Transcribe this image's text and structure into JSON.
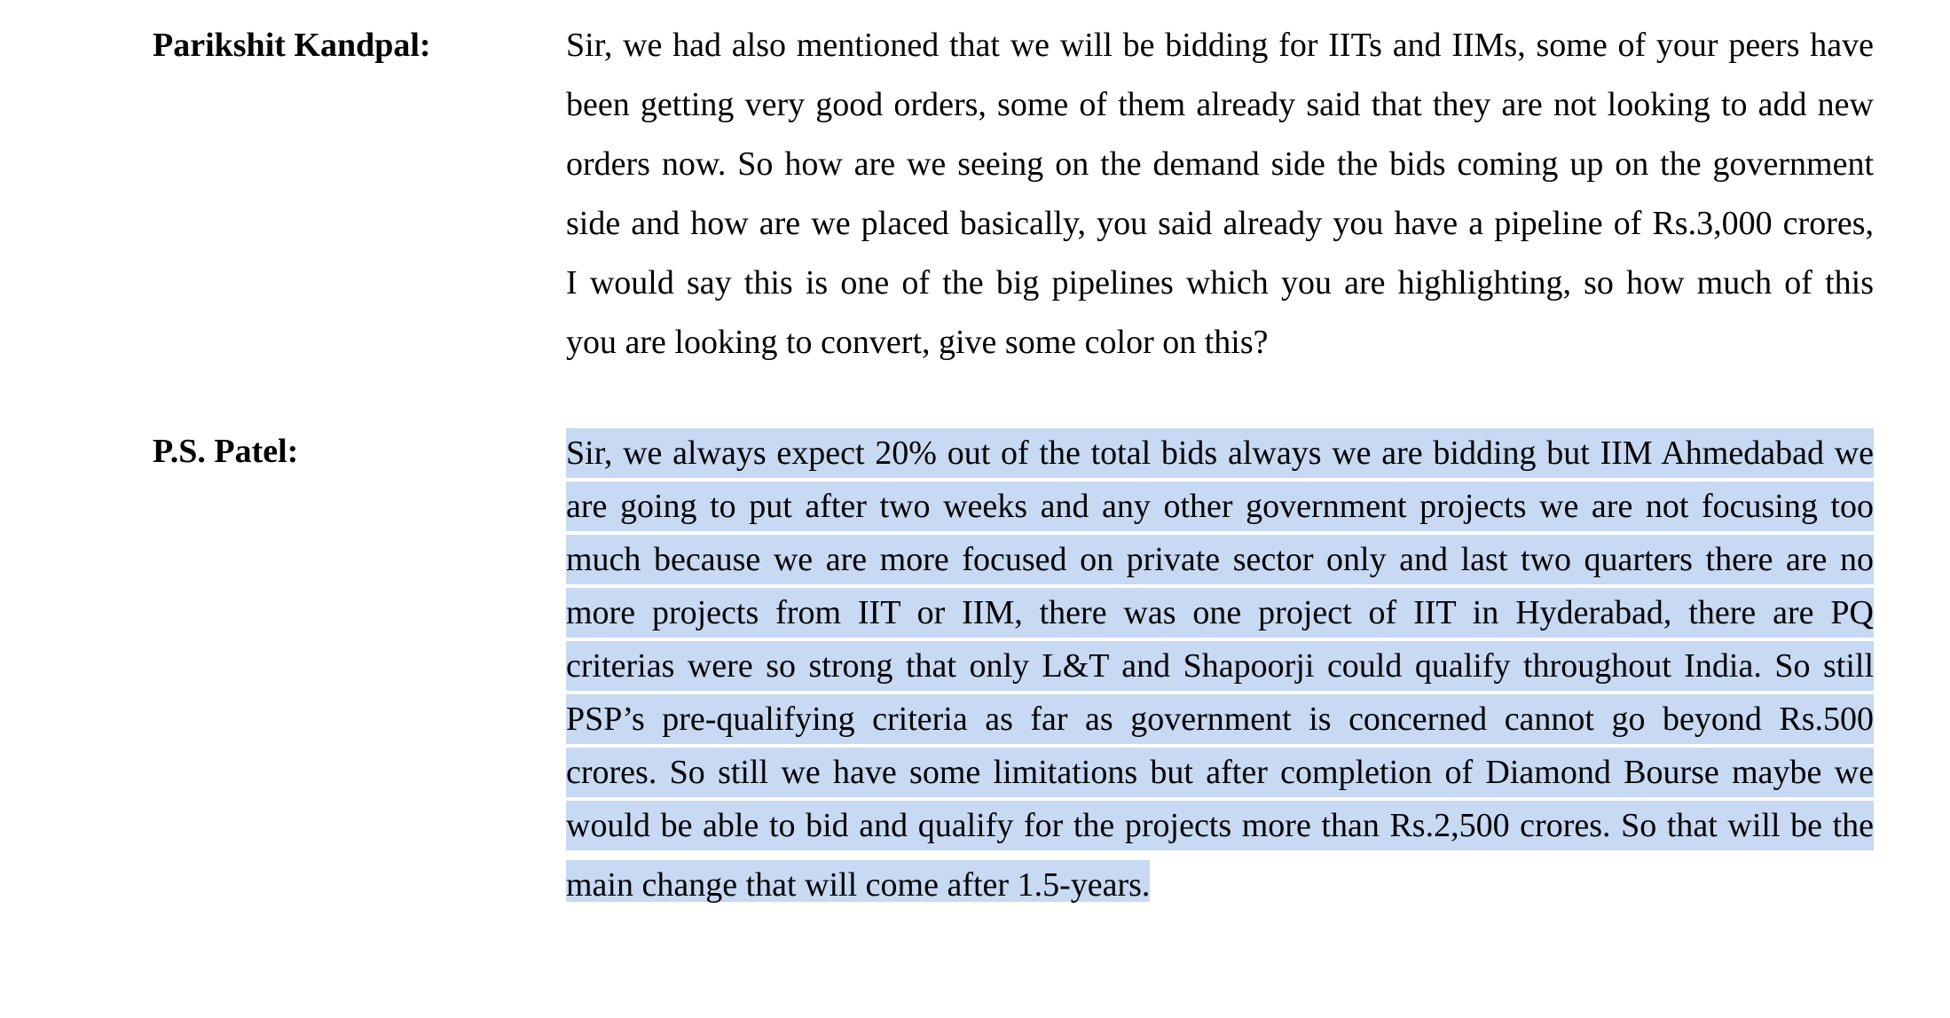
{
  "transcript": [
    {
      "speaker": "Parikshit Kandpal:",
      "highlighted": false,
      "lines": [
        "Sir, we had also mentioned that we will be bidding for IITs and IIMs, some of your peers have",
        "been getting very good orders, some of them already said that they are not looking to add new",
        "orders now. So how are we seeing on the demand side the bids coming up on the government",
        "side and how are we placed basically, you said already you have a pipeline of Rs.3,000 crores,",
        "I would say this is one of the big pipelines which you are highlighting, so how much of this",
        "you are looking to convert, give some color on this?"
      ]
    },
    {
      "speaker": "P.S. Patel:",
      "highlighted": true,
      "highlight_color": "#c7d9f3",
      "lines": [
        "Sir, we always expect 20% out of the total bids always we are bidding but IIM Ahmedabad we",
        "are going to put after two weeks and any other government projects we are not focusing too",
        "much because we are more focused on private sector only and last two quarters there are no",
        "more projects from IIT or IIM, there was one project of IIT in Hyderabad, there are PQ",
        "criterias were so strong that only L&T and Shapoorji could qualify throughout India. So still",
        "PSP’s pre-qualifying criteria as far as government is concerned cannot go beyond Rs.500",
        "crores. So still we have some limitations but after completion of Diamond Bourse maybe we",
        "would be able to bid and qualify for the projects more than Rs.2,500 crores. So that will be the",
        "main change that will come after 1.5-years."
      ]
    }
  ]
}
